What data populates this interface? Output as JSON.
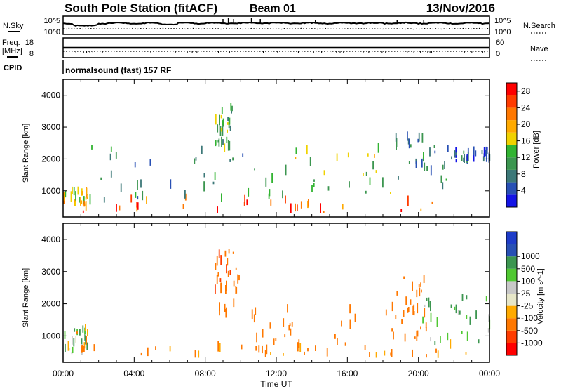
{
  "header": {
    "station": "South Pole Station (fitACF)",
    "beam": "Beam 01",
    "date": "13/Nov/2016"
  },
  "params": {
    "nsky_label": "N.Sky",
    "nsearch_label": "N.Search",
    "noise_ticks": [
      "10^5",
      "10^0"
    ],
    "freq_label_1": "Freq.",
    "freq_label_2": "[MHz]",
    "freq_ticks": [
      "18",
      "8"
    ],
    "nave_label": "Nave",
    "nave_ticks": [
      "60",
      "0"
    ],
    "cpid_label": "CPID",
    "cpid_text": "normalsound (fast) 157 RF"
  },
  "colors": {
    "power": [
      "#1414e6",
      "#2850b4",
      "#3c7878",
      "#3c9650",
      "#32b432",
      "#f0d200",
      "#ffaa00",
      "#ff7800",
      "#ff3c00",
      "#ff0000"
    ],
    "velocity": [
      "#ff0000",
      "#ff3c00",
      "#ff7800",
      "#ffaa00",
      "#e6e6c8",
      "#c8c8c8",
      "#50c832",
      "#3c9650",
      "#2850b4",
      "#1e3cc8"
    ]
  },
  "chart_data": [
    {
      "type": "heatmap",
      "name": "power",
      "title": "",
      "xlabel": "Time UT",
      "ylabel": "Slant Range [km]",
      "xlim": [
        "00:00",
        "24:00"
      ],
      "ylim": [
        180,
        4500
      ],
      "x_ticks": [
        "00:00",
        "04:00",
        "08:00",
        "12:00",
        "16:00",
        "20:00",
        "00:00"
      ],
      "y_ticks": [
        "1000",
        "2000",
        "3000",
        "4000"
      ],
      "colorbar": {
        "label": "Power [dB]",
        "ticks": [
          "4",
          "8",
          "12",
          "16",
          "20",
          "24",
          "28"
        ],
        "range": [
          0,
          30
        ]
      },
      "features": [
        {
          "t_start": 0.0,
          "t_end": 24.0,
          "range_start": 300,
          "range_end": 700,
          "value": 24
        },
        {
          "t_start": 0.0,
          "t_end": 1.5,
          "range_start": 500,
          "range_end": 900,
          "value": 18
        },
        {
          "t_start": 1.5,
          "t_end": 10.5,
          "range_start": 600,
          "range_end": 2300,
          "value": 10
        },
        {
          "t_start": 8.5,
          "t_end": 9.5,
          "range_start": 2200,
          "range_end": 3600,
          "value": 12
        },
        {
          "t_start": 10.5,
          "t_end": 18.5,
          "range_start": 700,
          "range_end": 2200,
          "value": 14
        },
        {
          "t_start": 18.5,
          "t_end": 22.0,
          "range_start": 1000,
          "range_end": 2600,
          "value": 9
        },
        {
          "t_start": 22.0,
          "t_end": 24.0,
          "range_start": 1800,
          "range_end": 2200,
          "value": 6
        }
      ]
    },
    {
      "type": "heatmap",
      "name": "velocity",
      "title": "",
      "xlabel": "Time UT",
      "ylabel": "Slant Range [km]",
      "xlim": [
        "00:00",
        "24:00"
      ],
      "ylim": [
        180,
        4500
      ],
      "x_ticks": [
        "00:00",
        "04:00",
        "08:00",
        "12:00",
        "16:00",
        "20:00",
        "00:00"
      ],
      "y_ticks": [
        "1000",
        "2000",
        "3000",
        "4000"
      ],
      "colorbar": {
        "label": "Velocity [m s^-1]",
        "ticks": [
          "1000",
          "500",
          "100",
          "25",
          "-25",
          "-100",
          "-500",
          "-1000"
        ]
      },
      "features": [
        {
          "t_start": 0.0,
          "t_end": 24.0,
          "range_start": 300,
          "range_end": 600,
          "value": -150
        },
        {
          "t_start": 0.0,
          "t_end": 1.5,
          "range_start": 400,
          "range_end": 1200,
          "value": 10
        },
        {
          "t_start": 8.5,
          "t_end": 10.0,
          "range_start": 1500,
          "range_end": 3600,
          "value": -400
        },
        {
          "t_start": 10.5,
          "t_end": 18.5,
          "range_start": 400,
          "range_end": 1800,
          "value": -350
        },
        {
          "t_start": 18.5,
          "t_end": 20.5,
          "range_start": 800,
          "range_end": 2800,
          "value": -300
        },
        {
          "t_start": 20.0,
          "t_end": 24.0,
          "range_start": 600,
          "range_end": 2200,
          "value": 150
        }
      ]
    }
  ]
}
